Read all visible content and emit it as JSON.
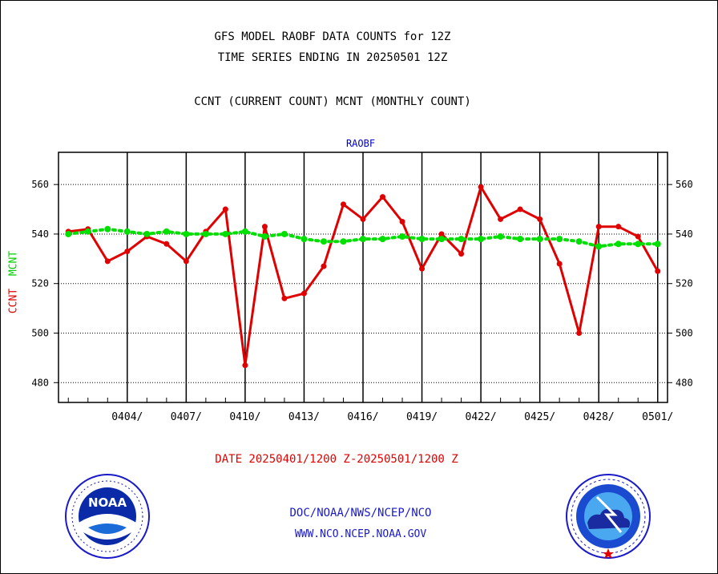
{
  "titles": {
    "line1": "GFS MODEL RAOBF DATA COUNTS for 12Z",
    "line2": "TIME SERIES ENDING IN 20250501 12Z",
    "line3": "CCNT (CURRENT COUNT) MCNT (MONTHLY COUNT)"
  },
  "date_range": "DATE 20250401/1200 Z-20250501/1200 Z",
  "footer": {
    "line1": "DOC/NOAA/NWS/NCEP/NCO",
    "line2": "WWW.NCO.NCEP.NOAA.GOV"
  },
  "logos": {
    "noaa": {
      "name": "noaa-logo",
      "text": "NOAA"
    },
    "nws": {
      "name": "nws-logo"
    }
  },
  "colors": {
    "ccnt": "#e00000",
    "mcnt": "#00e000",
    "title_blue": "#0000cc",
    "footer_blue": "#1a1ac8"
  },
  "chart_data": {
    "type": "line",
    "title": "RAOBF",
    "ylabel": [
      "CCNT",
      "MCNT"
    ],
    "ylim": [
      472,
      573
    ],
    "yticks": [
      480,
      500,
      520,
      540,
      560
    ],
    "x": [
      "0401",
      "0402",
      "0403",
      "0404",
      "0405",
      "0406",
      "0407",
      "0408",
      "0409",
      "0410",
      "0411",
      "0412",
      "0413",
      "0414",
      "0415",
      "0416",
      "0417",
      "0418",
      "0419",
      "0420",
      "0421",
      "0422",
      "0423",
      "0424",
      "0425",
      "0426",
      "0427",
      "0428",
      "0429",
      "0430",
      "0501"
    ],
    "xtick_labels": [
      "0404/",
      "0407/",
      "0410/",
      "0413/",
      "0416/",
      "0419/",
      "0422/",
      "0425/",
      "0428/",
      "0501/"
    ],
    "grid": true,
    "series": [
      {
        "name": "CCNT",
        "color": "#e00000",
        "values": [
          541,
          542,
          529,
          533,
          539,
          536,
          529,
          541,
          550,
          487,
          543,
          514,
          516,
          527,
          552,
          546,
          555,
          545,
          526,
          540,
          532,
          559,
          546,
          550,
          546,
          528,
          500,
          543,
          543,
          539,
          525
        ]
      },
      {
        "name": "MCNT",
        "color": "#00e000",
        "values": [
          540,
          541,
          542,
          541,
          540,
          541,
          540,
          540,
          540,
          541,
          539,
          540,
          538,
          537,
          537,
          538,
          538,
          539,
          538,
          538,
          538,
          538,
          539,
          538,
          538,
          538,
          537,
          535,
          536,
          536,
          536
        ]
      }
    ]
  }
}
